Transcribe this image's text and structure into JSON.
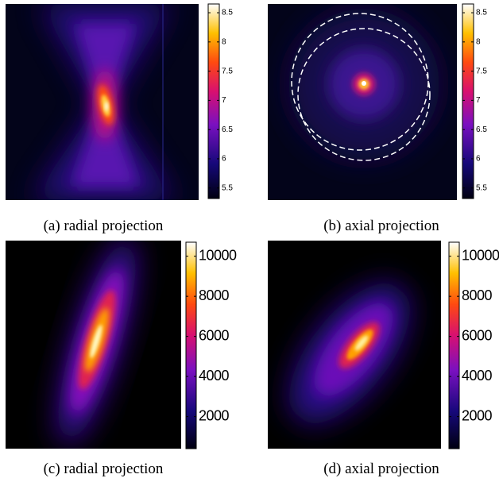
{
  "panels": [
    {
      "caption": "(a) radial projection",
      "colorbar": {
        "lim": [
          5.32,
          8.65
        ],
        "ticks": [
          5.5,
          6,
          6.5,
          7,
          7.5,
          8,
          8.5
        ]
      }
    },
    {
      "caption": "(b) axial projection",
      "colorbar": {
        "lim": [
          5.32,
          8.65
        ],
        "ticks": [
          5.5,
          6,
          6.5,
          7,
          7.5,
          8,
          8.5
        ]
      }
    },
    {
      "caption": "(c) radial projection",
      "colorbar": {
        "lim": [
          400,
          10700
        ],
        "ticks": [
          2000,
          4000,
          6000,
          8000,
          10000
        ]
      }
    },
    {
      "caption": "(d) axial projection",
      "colorbar": {
        "lim": [
          400,
          10700
        ],
        "ticks": [
          2000,
          4000,
          6000,
          8000,
          10000
        ]
      }
    }
  ]
}
